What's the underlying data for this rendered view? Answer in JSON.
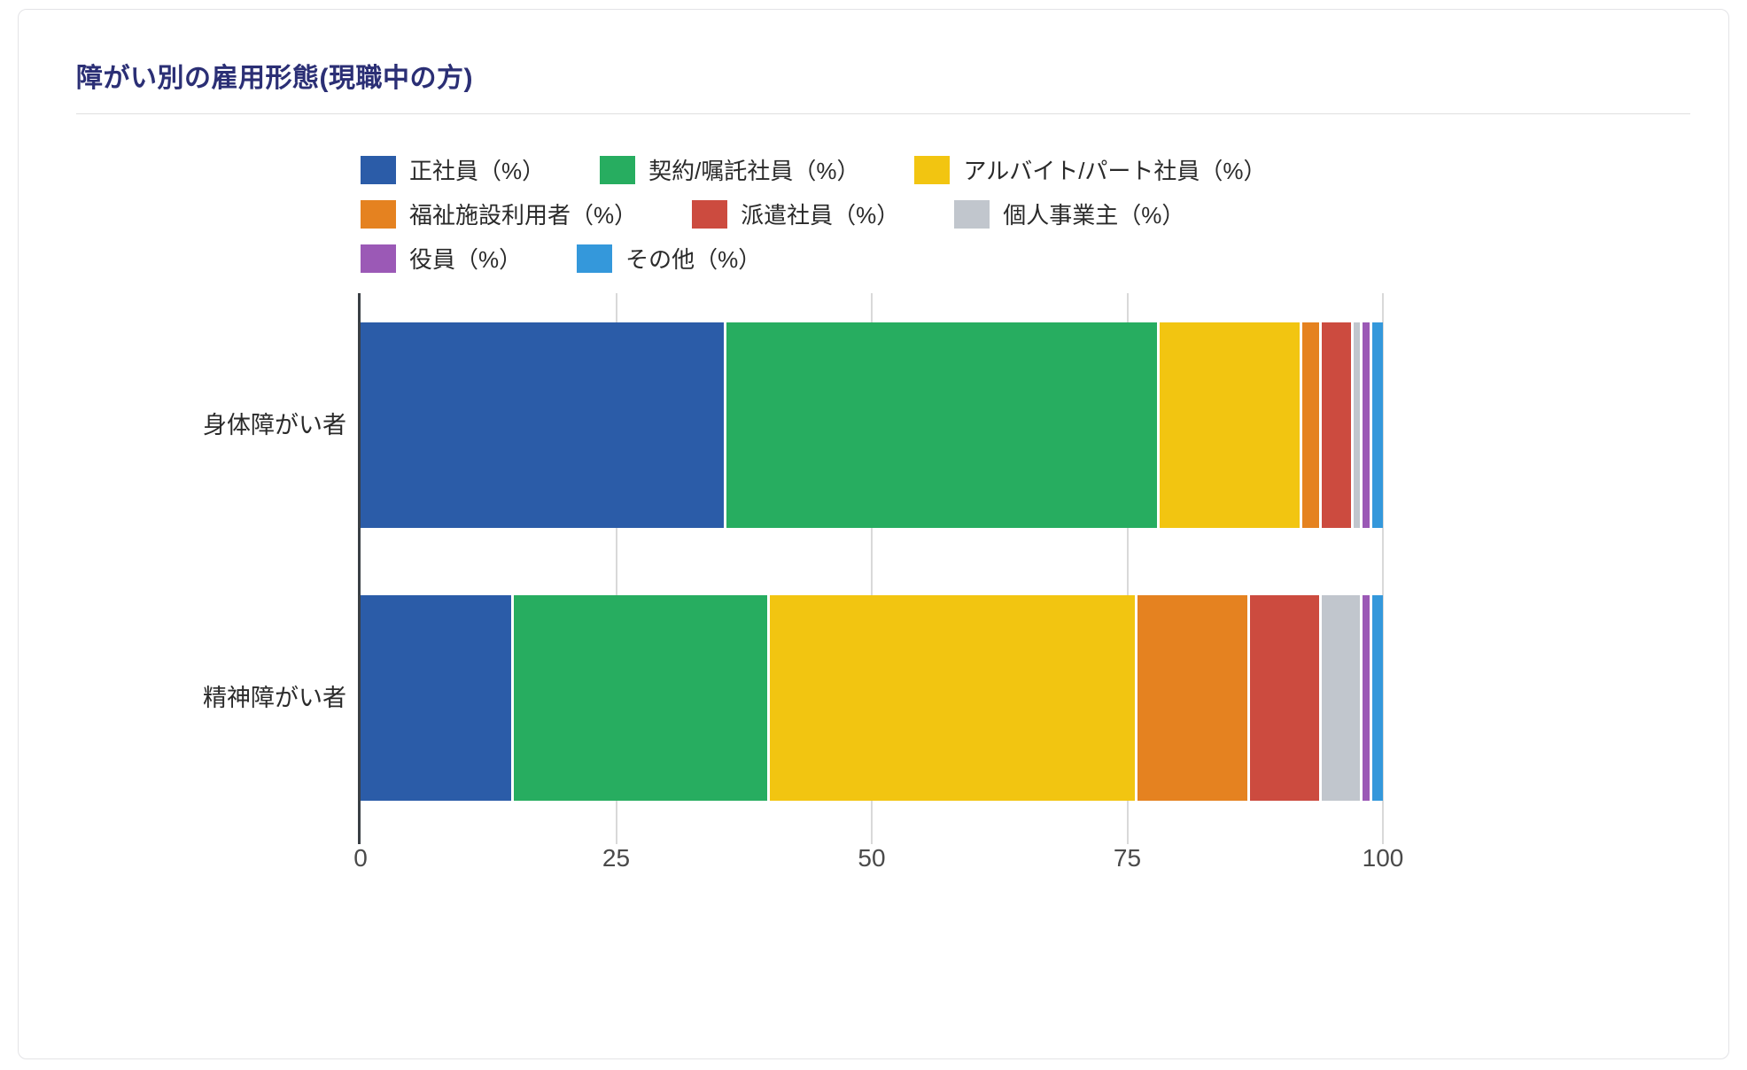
{
  "header": {
    "title": "障がい別の雇用形態(現職中の方)"
  },
  "colors": {
    "title": "#2b2f75",
    "grid": "#d9d9d9",
    "axis": "#3a3f44"
  },
  "chart_data": {
    "type": "bar",
    "orientation": "horizontal",
    "stacked": true,
    "title": "障がい別の雇用形態(現職中の方)",
    "categories": [
      "身体障がい者",
      "精神障がい者"
    ],
    "series": [
      {
        "name": "正社員（%）",
        "color": "#2b5ca8",
        "values": [
          35.8,
          15
        ]
      },
      {
        "name": "契約/嘱託社員（%）",
        "color": "#27ad60",
        "values": [
          42.4,
          25
        ]
      },
      {
        "name": "アルバイト/パート社員（%）",
        "color": "#f2c511",
        "values": [
          13.9,
          36
        ]
      },
      {
        "name": "福祉施設利用者（%）",
        "color": "#e58220",
        "values": [
          1.9,
          11
        ]
      },
      {
        "name": "派遣社員（%）",
        "color": "#cc4b3f",
        "values": [
          3.1,
          7
        ]
      },
      {
        "name": "個人事業主（%）",
        "color": "#c1c6cd",
        "values": [
          0.9,
          4
        ]
      },
      {
        "name": "役員（%）",
        "color": "#9b59b6",
        "values": [
          1.0,
          1
        ]
      },
      {
        "name": "その他（%）",
        "color": "#3498db",
        "values": [
          1.0,
          1
        ]
      }
    ],
    "xlabel": "",
    "ylabel": "",
    "xlim": [
      0,
      100
    ],
    "x_ticks": [
      "0",
      "25",
      "50",
      "75",
      "100"
    ],
    "grid": true,
    "legend_position": "top",
    "legend_rows": [
      3,
      3,
      2
    ]
  }
}
